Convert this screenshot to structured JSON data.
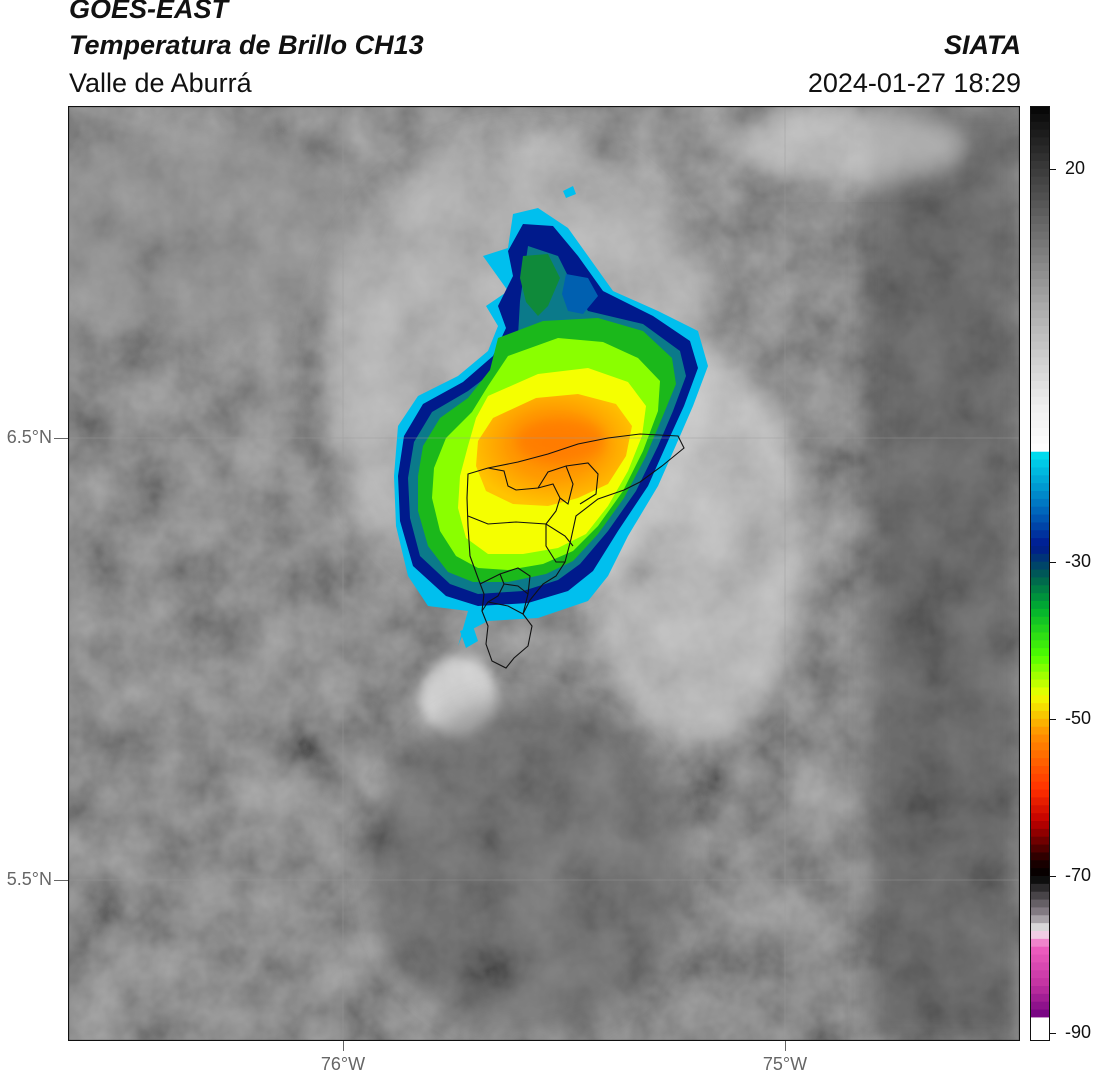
{
  "header": {
    "satellite": "GOES-EAST",
    "product": "Temperatura de Brillo CH13",
    "organization": "SIATA",
    "region": "Valle de Aburrá",
    "timestamp": "2024-01-27 18:29"
  },
  "map": {
    "lat_labels": [
      "6.5°N",
      "5.5°N"
    ],
    "lon_labels": [
      "76°W",
      "75°W"
    ],
    "lat_range": [
      5.13,
      7.25
    ],
    "lon_range": [
      -76.62,
      -74.47
    ],
    "gridlines": true
  },
  "colorbar": {
    "range": [
      -91,
      28
    ],
    "tick_labels": [
      "20",
      "-30",
      "-50",
      "-70",
      "-90"
    ],
    "tick_values": [
      20,
      -30,
      -50,
      -70,
      -90
    ],
    "stops": [
      {
        "value": 28,
        "color": "#050505"
      },
      {
        "value": 20,
        "color": "#3a3a3a"
      },
      {
        "value": 10,
        "color": "#7a7a7a"
      },
      {
        "value": 0,
        "color": "#b8b8b8"
      },
      {
        "value": -10,
        "color": "#ededed"
      },
      {
        "value": -16,
        "color": "#ffffff"
      },
      {
        "value": -16.1,
        "color": "#00e0f0"
      },
      {
        "value": -23,
        "color": "#0070c0"
      },
      {
        "value": -28,
        "color": "#001890"
      },
      {
        "value": -32,
        "color": "#006050"
      },
      {
        "value": -36,
        "color": "#00b030"
      },
      {
        "value": -42,
        "color": "#50ff00"
      },
      {
        "value": -47,
        "color": "#f0ff00"
      },
      {
        "value": -52,
        "color": "#ff9000"
      },
      {
        "value": -59,
        "color": "#ff3000"
      },
      {
        "value": -63,
        "color": "#c00000"
      },
      {
        "value": -68,
        "color": "#200000"
      },
      {
        "value": -70,
        "color": "#000000"
      },
      {
        "value": -75,
        "color": "#908890"
      },
      {
        "value": -77,
        "color": "#f0f0f0"
      },
      {
        "value": -79,
        "color": "#f060c0"
      },
      {
        "value": -84,
        "color": "#c030a0"
      },
      {
        "value": -88,
        "color": "#700080"
      },
      {
        "value": -88.1,
        "color": "#ffffff"
      },
      {
        "value": -91,
        "color": "#ffffff"
      }
    ]
  },
  "colors": {
    "cloud_core": "#ff8c00",
    "cloud_yellow": "#f5ff00",
    "cloud_green": "#2ecc00",
    "cloud_blue": "#001a8c",
    "cloud_cyan": "#00c0ee"
  }
}
